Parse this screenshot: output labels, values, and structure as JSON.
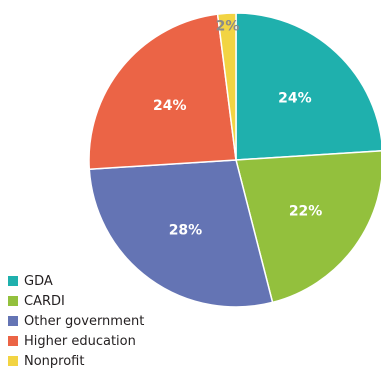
{
  "chart_data": {
    "type": "pie",
    "title": "",
    "start_angle_deg": 0,
    "direction": "clockwise",
    "slices": [
      {
        "label": "GDA",
        "value": 24,
        "value_label": "24%",
        "color": "#1fb0ad"
      },
      {
        "label": "CARDI",
        "value": 22,
        "value_label": "22%",
        "color": "#93c03d"
      },
      {
        "label": "Other government",
        "value": 28,
        "value_label": "28%",
        "color": "#6474b4"
      },
      {
        "label": "Higher education",
        "value": 24,
        "value_label": "24%",
        "color": "#eb6446"
      },
      {
        "label": "Nonprofit",
        "value": 2,
        "value_label": "2%",
        "color": "#f2d443"
      }
    ],
    "legend": {
      "placement": "bottom-left",
      "entries": [
        "GDA",
        "CARDI",
        "Other government",
        "Higher education",
        "Nonprofit"
      ]
    }
  }
}
